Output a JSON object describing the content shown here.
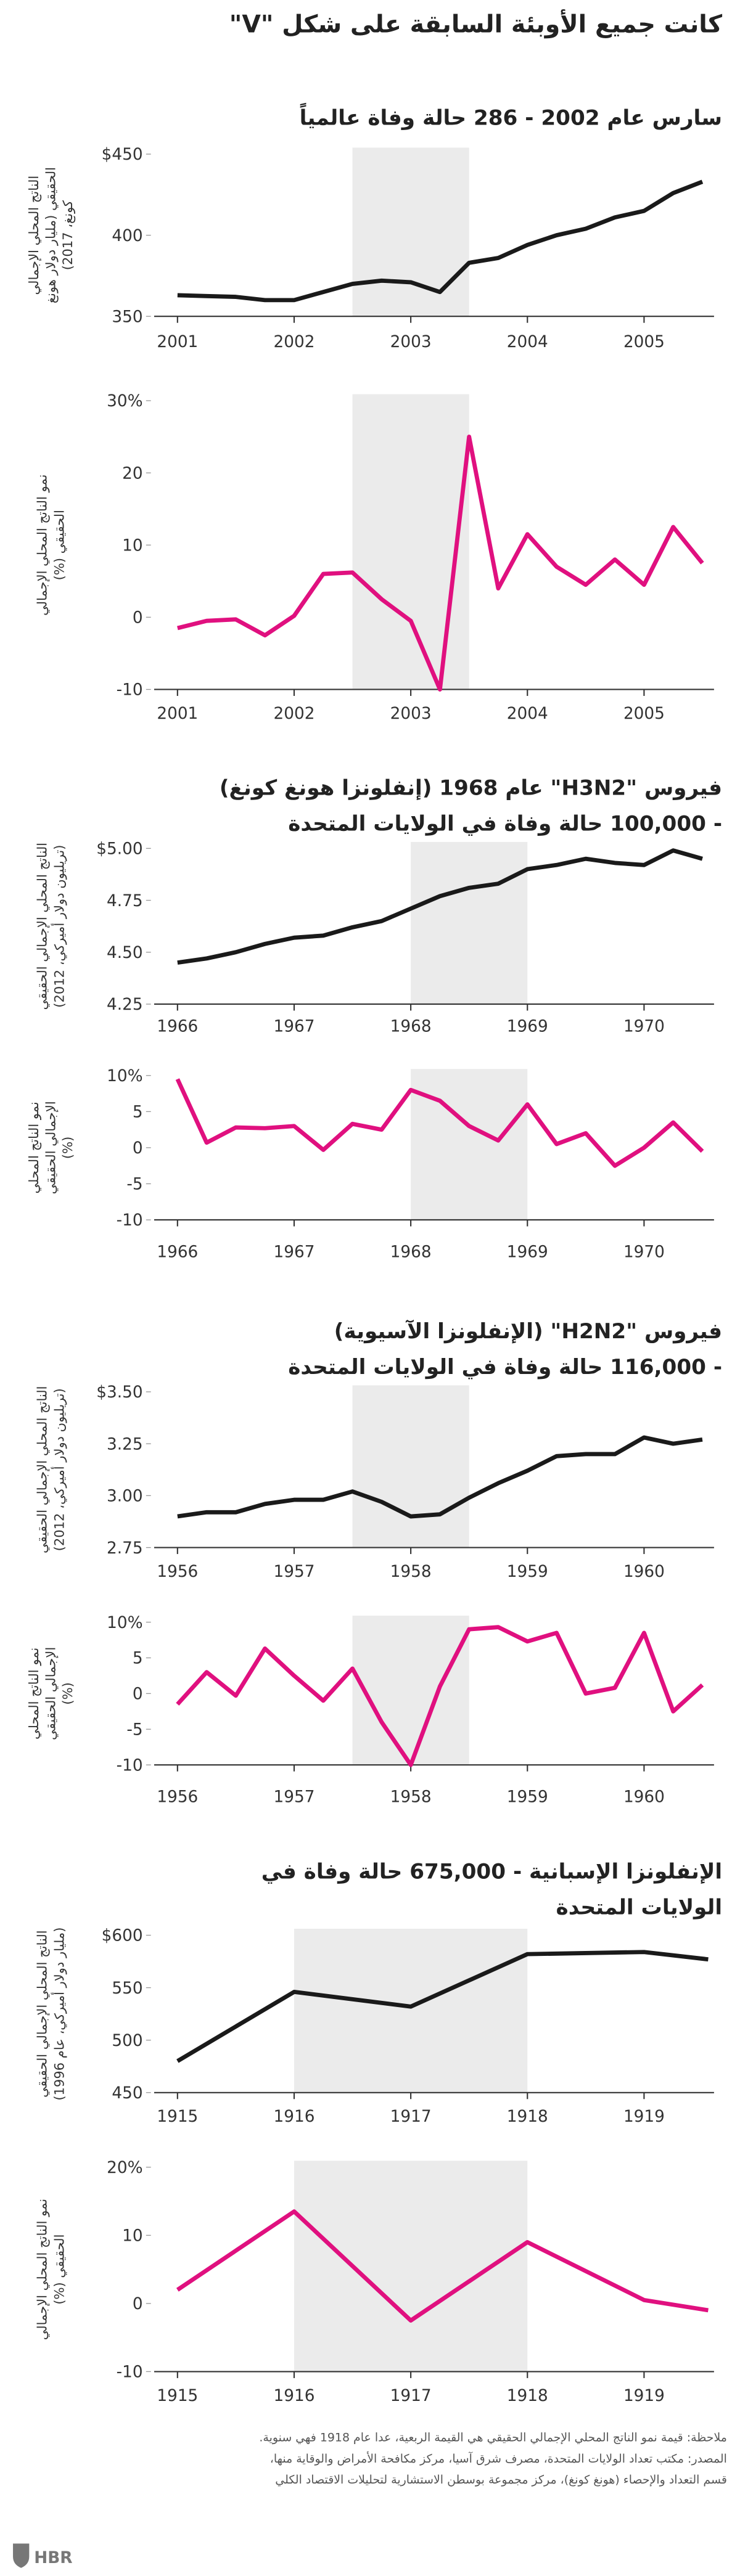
{
  "title": "كانت جميع الأوبئة السابقة على شكل \"V\"",
  "sections": [
    {
      "title": [
        "سارس عام 2002 - 286 حالة وفاة عالمياً"
      ]
    },
    {
      "title": [
        "فيروس \"H3N2\" عام 1968 (إنفلونزا هونغ كونغ)",
        "- 100,000 حالة وفاة في الولايات المتحدة"
      ]
    },
    {
      "title": [
        "فيروس \"H2N2\" (الإنفلونزا الآسيوية)",
        "- 116,000 حالة وفاة في الولايات المتحدة"
      ]
    },
    {
      "title": [
        "الإنفلونزا الإسبانية - 675,000 حالة وفاة في",
        "الولايات المتحدة"
      ]
    }
  ],
  "chart_data": [
    {
      "type": "line",
      "ylabel": [
        "الناتج المحلي الإجمالي",
        "الحقيقي (مليار دولار هونغ",
        "كونغ، 2017)"
      ],
      "x": [
        2001,
        2001.25,
        2001.5,
        2001.75,
        2002,
        2002.25,
        2002.5,
        2002.75,
        2003,
        2003.25,
        2003.5,
        2003.75,
        2004,
        2004.25,
        2004.5,
        2004.75,
        2005,
        2005.25,
        2005.5
      ],
      "values": [
        363,
        362.5,
        362,
        360,
        360,
        365,
        370,
        372,
        371,
        365,
        383,
        386,
        394,
        400,
        404,
        411,
        415,
        426,
        433
      ],
      "color": "#1a1a1a",
      "xlim": [
        2000.8,
        2005.6
      ],
      "xticks": [
        2001,
        2002,
        2003,
        2004,
        2005
      ],
      "ylim": [
        350,
        450
      ],
      "yticks": [
        {
          "value": 450,
          "label": "$450"
        },
        400,
        350
      ],
      "highlight_x": [
        2002.5,
        2003.5
      ]
    },
    {
      "type": "line",
      "ylabel": [
        "نمو الناتج المحلي الإجمالي",
        "الحقيقي (%)"
      ],
      "x": [
        2001,
        2001.25,
        2001.5,
        2001.75,
        2002,
        2002.25,
        2002.5,
        2002.75,
        2003,
        2003.25,
        2003.5,
        2003.75,
        2004,
        2004.25,
        2004.5,
        2004.75,
        2005,
        2005.25,
        2005.5
      ],
      "values": [
        -1.5,
        -0.5,
        -0.3,
        -2.5,
        0.2,
        6,
        6.2,
        2.5,
        -0.5,
        -10,
        25,
        4,
        11.5,
        7,
        4.5,
        8,
        4.5,
        12.5,
        7.5
      ],
      "color": "#e0107f",
      "xlim": [
        2000.8,
        2005.6
      ],
      "xticks": [
        2001,
        2002,
        2003,
        2004,
        2005
      ],
      "ylim": [
        -10,
        30
      ],
      "yticks": [
        {
          "value": 30,
          "label": "30%"
        },
        20,
        10,
        0,
        -10
      ],
      "highlight_x": [
        2002.5,
        2003.5
      ]
    },
    {
      "type": "line",
      "ylabel": [
        "الناتج المحلي الإجمالي الحقيقي",
        "(تريليون دولار أميركي، 2012)"
      ],
      "x": [
        1966,
        1966.25,
        1966.5,
        1966.75,
        1967,
        1967.25,
        1967.5,
        1967.75,
        1968,
        1968.25,
        1968.5,
        1968.75,
        1969,
        1969.25,
        1969.5,
        1969.75,
        1970,
        1970.25,
        1970.5
      ],
      "values": [
        4.45,
        4.47,
        4.5,
        4.54,
        4.57,
        4.58,
        4.62,
        4.65,
        4.71,
        4.77,
        4.81,
        4.83,
        4.9,
        4.92,
        4.95,
        4.93,
        4.92,
        4.99,
        4.95
      ],
      "color": "#1a1a1a",
      "xlim": [
        1965.8,
        1970.6
      ],
      "xticks": [
        1966,
        1967,
        1968,
        1969,
        1970
      ],
      "ylim": [
        4.25,
        5
      ],
      "yticks": [
        {
          "value": 5,
          "label": "$5.00"
        },
        4.75,
        {
          "value": 4.5,
          "label": "4.50"
        },
        4.25
      ],
      "highlight_x": [
        1968,
        1969
      ]
    },
    {
      "type": "line",
      "ylabel": [
        "نمو الناتج المحلي",
        "الإجمالي الحقيقي",
        "(%)"
      ],
      "x": [
        1966,
        1966.25,
        1966.5,
        1966.75,
        1967,
        1967.25,
        1967.5,
        1967.75,
        1968,
        1968.25,
        1968.5,
        1968.75,
        1969,
        1969.25,
        1969.5,
        1969.75,
        1970,
        1970.25,
        1970.5
      ],
      "values": [
        9.5,
        0.7,
        2.8,
        2.7,
        3,
        -0.3,
        3.3,
        2.5,
        8,
        6.5,
        3,
        1,
        6,
        0.5,
        2,
        -2.5,
        0,
        3.5,
        -0.5
      ],
      "color": "#e0107f",
      "xlim": [
        1965.8,
        1970.6
      ],
      "xticks": [
        1966,
        1967,
        1968,
        1969,
        1970
      ],
      "ylim": [
        -10,
        10
      ],
      "yticks": [
        {
          "value": 10,
          "label": "10%"
        },
        5,
        0,
        -5,
        -10
      ],
      "highlight_x": [
        1968,
        1969
      ]
    },
    {
      "type": "line",
      "ylabel": [
        "الناتج المحلي الإجمالي الحقيقي",
        "(تريليون دولار أميركي، 2012)"
      ],
      "x": [
        1956,
        1956.25,
        1956.5,
        1956.75,
        1957,
        1957.25,
        1957.5,
        1957.75,
        1958,
        1958.25,
        1958.5,
        1958.75,
        1959,
        1959.25,
        1959.5,
        1959.75,
        1960,
        1960.25,
        1960.5
      ],
      "values": [
        2.9,
        2.92,
        2.92,
        2.96,
        2.98,
        2.98,
        3.02,
        2.97,
        2.9,
        2.91,
        2.99,
        3.06,
        3.12,
        3.19,
        3.2,
        3.2,
        3.28,
        3.25,
        3.27
      ],
      "color": "#1a1a1a",
      "xlim": [
        1955.8,
        1960.6
      ],
      "xticks": [
        1956,
        1957,
        1958,
        1959,
        1960
      ],
      "ylim": [
        2.75,
        3.5
      ],
      "yticks": [
        {
          "value": 3.5,
          "label": "$3.50"
        },
        3.25,
        {
          "value": 3,
          "label": "3.00"
        },
        2.75
      ],
      "highlight_x": [
        1957.5,
        1958.5
      ]
    },
    {
      "type": "line",
      "ylabel": [
        "نمو الناتج المحلي",
        "الإجمالي الحقيقي",
        "(%)"
      ],
      "x": [
        1956,
        1956.25,
        1956.5,
        1956.75,
        1957,
        1957.25,
        1957.5,
        1957.75,
        1958,
        1958.25,
        1958.5,
        1958.75,
        1959,
        1959.25,
        1959.5,
        1959.75,
        1960,
        1960.25,
        1960.5
      ],
      "values": [
        -1.5,
        3,
        -0.3,
        6.3,
        2.5,
        -1,
        3.5,
        -4,
        -10,
        1,
        9,
        9.3,
        7.3,
        8.5,
        0,
        0.8,
        8.5,
        -2.5,
        1.2
      ],
      "color": "#e0107f",
      "xlim": [
        1955.8,
        1960.6
      ],
      "xticks": [
        1956,
        1957,
        1958,
        1959,
        1960
      ],
      "ylim": [
        -10,
        10
      ],
      "yticks": [
        {
          "value": 10,
          "label": "10%"
        },
        5,
        0,
        -5,
        -10
      ],
      "highlight_x": [
        1957.5,
        1958.5
      ]
    },
    {
      "type": "line",
      "ylabel": [
        "الناتج المحلي الإجمالي الحقيقي",
        "(مليار دولار أميركي، عام 1996)"
      ],
      "x": [
        1915,
        1916,
        1917,
        1918,
        1919,
        1919.55
      ],
      "values": [
        480,
        546,
        532,
        582,
        584,
        577
      ],
      "color": "#1a1a1a",
      "xlim": [
        1914.8,
        1919.6
      ],
      "xticks": [
        1915,
        1916,
        1917,
        1918,
        1919
      ],
      "ylim": [
        450,
        600
      ],
      "yticks": [
        {
          "value": 600,
          "label": "$600"
        },
        550,
        500,
        450
      ],
      "highlight_x": [
        1916,
        1918
      ]
    },
    {
      "type": "line",
      "ylabel": [
        "نمو الناتج المحلي الإجمالي",
        "الحقيقي (%)"
      ],
      "x": [
        1915,
        1916,
        1917,
        1918,
        1919,
        1919.55
      ],
      "values": [
        2,
        13.5,
        -2.5,
        9,
        0.5,
        -1
      ],
      "color": "#e0107f",
      "xlim": [
        1914.8,
        1919.6
      ],
      "xticks": [
        1915,
        1916,
        1917,
        1918,
        1919
      ],
      "ylim": [
        -10,
        20
      ],
      "yticks": [
        {
          "value": 20,
          "label": "20%"
        },
        10,
        0,
        -10
      ],
      "highlight_x": [
        1916,
        1918
      ]
    }
  ],
  "notes": [
    "ملاحظة: قيمة نمو الناتج المحلي الإجمالي الحقيقي هي القيمة الربعية، عدا عام 1918 فهي سنوية.",
    "المصدر: مكتب تعداد الولايات المتحدة، مصرف شرق آسيا، مركز مكافحة الأمراض والوقاية منها،",
    "قسم التعداد والإحصاء (هونغ كونغ)، مركز مجموعة بوسطن الاستشارية لتحليلات الاقتصاد الكلي"
  ],
  "logo": "HBR"
}
